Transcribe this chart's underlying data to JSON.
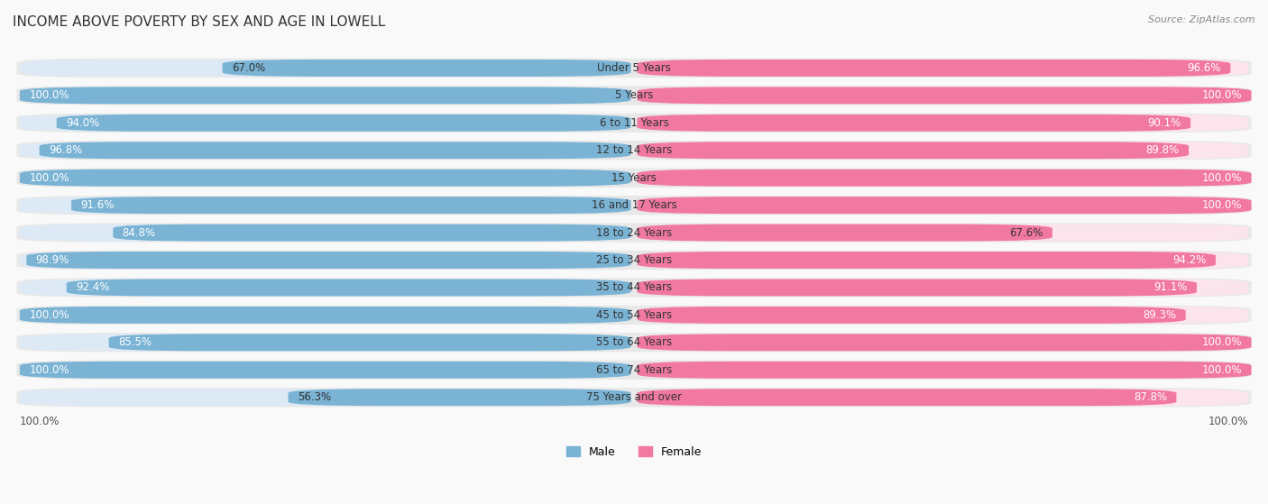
{
  "title": "INCOME ABOVE POVERTY BY SEX AND AGE IN LOWELL",
  "source": "Source: ZipAtlas.com",
  "categories": [
    "Under 5 Years",
    "5 Years",
    "6 to 11 Years",
    "12 to 14 Years",
    "15 Years",
    "16 and 17 Years",
    "18 to 24 Years",
    "25 to 34 Years",
    "35 to 44 Years",
    "45 to 54 Years",
    "55 to 64 Years",
    "65 to 74 Years",
    "75 Years and over"
  ],
  "male_values": [
    67.0,
    100.0,
    94.0,
    96.8,
    100.0,
    91.6,
    84.8,
    98.9,
    92.4,
    100.0,
    85.5,
    100.0,
    56.3
  ],
  "female_values": [
    96.6,
    100.0,
    90.1,
    89.8,
    100.0,
    100.0,
    67.6,
    94.2,
    91.1,
    89.3,
    100.0,
    100.0,
    87.8
  ],
  "male_color": "#7ab3d4",
  "female_color": "#f178a0",
  "male_bg_color": "#ddeaf5",
  "female_bg_color": "#fce4ec",
  "row_bg_color": "#efefef",
  "bg_color": "#f9f9f9",
  "legend_male": "Male",
  "legend_female": "Female",
  "title_fontsize": 11,
  "source_fontsize": 8,
  "value_fontsize": 8.5,
  "category_fontsize": 8.5,
  "axis_label_fontsize": 8.5,
  "max_value": 100.0
}
